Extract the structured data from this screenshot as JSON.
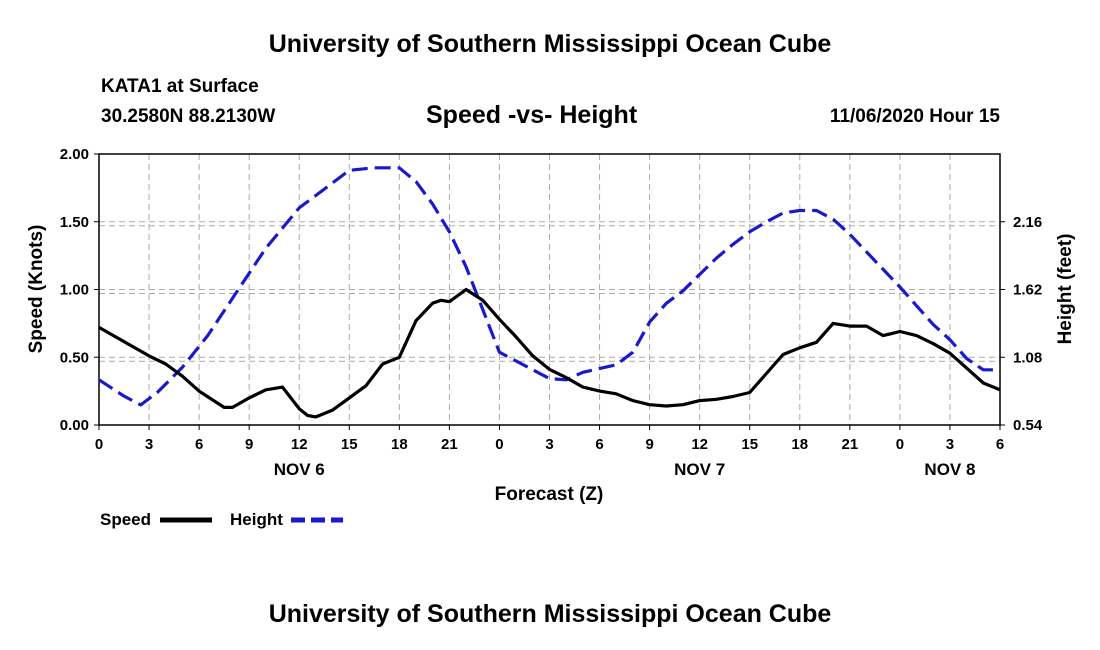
{
  "page": {
    "header_title": "University of Southern Mississippi Ocean Cube",
    "footer_title": "University of Southern Mississippi Ocean Cube",
    "station": "KATA1 at Surface",
    "location": "30.2580N 88.2130W",
    "run_time": "11/06/2020 Hour 15"
  },
  "colors": {
    "speed": "#000000",
    "height": "#1a1acc",
    "grid": "#aaaaaa"
  },
  "chart_data": {
    "type": "line",
    "title": "Speed -vs- Height",
    "xlabel": "Forecast (Z)",
    "ylabel": "Speed (Knots)",
    "y2label": "Height (feet)",
    "grid": true,
    "legend_position": "bottom-left",
    "x_range": [
      0,
      54
    ],
    "ylim": [
      0,
      2.0
    ],
    "y2lim": [
      0.54,
      2.7
    ],
    "x_ticks": [
      {
        "x": 0,
        "label": "0"
      },
      {
        "x": 3,
        "label": "3"
      },
      {
        "x": 6,
        "label": "6"
      },
      {
        "x": 9,
        "label": "9"
      },
      {
        "x": 12,
        "label": "12"
      },
      {
        "x": 15,
        "label": "15"
      },
      {
        "x": 18,
        "label": "18"
      },
      {
        "x": 21,
        "label": "21"
      },
      {
        "x": 24,
        "label": "0"
      },
      {
        "x": 27,
        "label": "3"
      },
      {
        "x": 30,
        "label": "6"
      },
      {
        "x": 33,
        "label": "9"
      },
      {
        "x": 36,
        "label": "12"
      },
      {
        "x": 39,
        "label": "15"
      },
      {
        "x": 42,
        "label": "18"
      },
      {
        "x": 45,
        "label": "21"
      },
      {
        "x": 48,
        "label": "0"
      },
      {
        "x": 51,
        "label": "3"
      },
      {
        "x": 54,
        "label": "6"
      }
    ],
    "day_labels": [
      {
        "x": 12,
        "label": "NOV 6"
      },
      {
        "x": 36,
        "label": "NOV 7"
      },
      {
        "x": 51,
        "label": "NOV 8"
      }
    ],
    "y_ticks": [
      {
        "v": 0.0,
        "label": "0.00"
      },
      {
        "v": 0.5,
        "label": "0.50"
      },
      {
        "v": 1.0,
        "label": "1.00"
      },
      {
        "v": 1.5,
        "label": "1.50"
      },
      {
        "v": 2.0,
        "label": "2.00"
      }
    ],
    "y2_ticks": [
      {
        "v": 0.54,
        "label": "0.54"
      },
      {
        "v": 1.08,
        "label": "1.08"
      },
      {
        "v": 1.62,
        "label": "1.62"
      },
      {
        "v": 2.16,
        "label": "2.16"
      }
    ],
    "series": [
      {
        "name": "Speed",
        "axis": "left",
        "style": "solid",
        "x": [
          0,
          1,
          2,
          3,
          4,
          5,
          6,
          7,
          7.5,
          8,
          9,
          10,
          11,
          12,
          12.5,
          13,
          14,
          15,
          16,
          17,
          18,
          19,
          20,
          20.5,
          21,
          22,
          23,
          24,
          25,
          26,
          27,
          28,
          29,
          30,
          31,
          32,
          33,
          34,
          35,
          36,
          37,
          38,
          39,
          40,
          41,
          42,
          43,
          44,
          45,
          46,
          47,
          48,
          49,
          50,
          51,
          52,
          53,
          54
        ],
        "values": [
          0.72,
          0.65,
          0.58,
          0.51,
          0.45,
          0.36,
          0.25,
          0.17,
          0.13,
          0.13,
          0.2,
          0.26,
          0.28,
          0.12,
          0.07,
          0.06,
          0.11,
          0.2,
          0.29,
          0.45,
          0.5,
          0.77,
          0.9,
          0.92,
          0.91,
          1.0,
          0.92,
          0.78,
          0.65,
          0.51,
          0.41,
          0.35,
          0.28,
          0.25,
          0.23,
          0.18,
          0.15,
          0.14,
          0.15,
          0.18,
          0.19,
          0.21,
          0.24,
          0.38,
          0.52,
          0.57,
          0.61,
          0.75,
          0.73,
          0.73,
          0.66,
          0.69,
          0.66,
          0.6,
          0.53,
          0.42,
          0.31,
          0.26
        ]
      },
      {
        "name": "Height",
        "axis": "right",
        "style": "dashed",
        "x": [
          0,
          1.5,
          2.5,
          3.5,
          5,
          6.5,
          8,
          10,
          12,
          13.5,
          15,
          16.5,
          18,
          19,
          20,
          21,
          22,
          23,
          24,
          25,
          26,
          27,
          28,
          29,
          31,
          32,
          33,
          34,
          35,
          36,
          37,
          38,
          39,
          40,
          41,
          42,
          43,
          44,
          45,
          46,
          47,
          48,
          49,
          50,
          51,
          52,
          53,
          54
        ],
        "values": [
          0.9,
          0.77,
          0.7,
          0.8,
          1.0,
          1.25,
          1.55,
          1.95,
          2.27,
          2.42,
          2.57,
          2.59,
          2.59,
          2.48,
          2.3,
          2.08,
          1.8,
          1.46,
          1.12,
          1.05,
          0.98,
          0.91,
          0.9,
          0.96,
          1.02,
          1.12,
          1.36,
          1.51,
          1.61,
          1.74,
          1.87,
          1.98,
          2.08,
          2.16,
          2.23,
          2.25,
          2.25,
          2.18,
          2.06,
          1.92,
          1.78,
          1.64,
          1.49,
          1.34,
          1.22,
          1.07,
          0.98,
          0.98
        ]
      }
    ],
    "legend": [
      {
        "name": "Speed",
        "style": "solid"
      },
      {
        "name": "Height",
        "style": "dashed"
      }
    ]
  }
}
